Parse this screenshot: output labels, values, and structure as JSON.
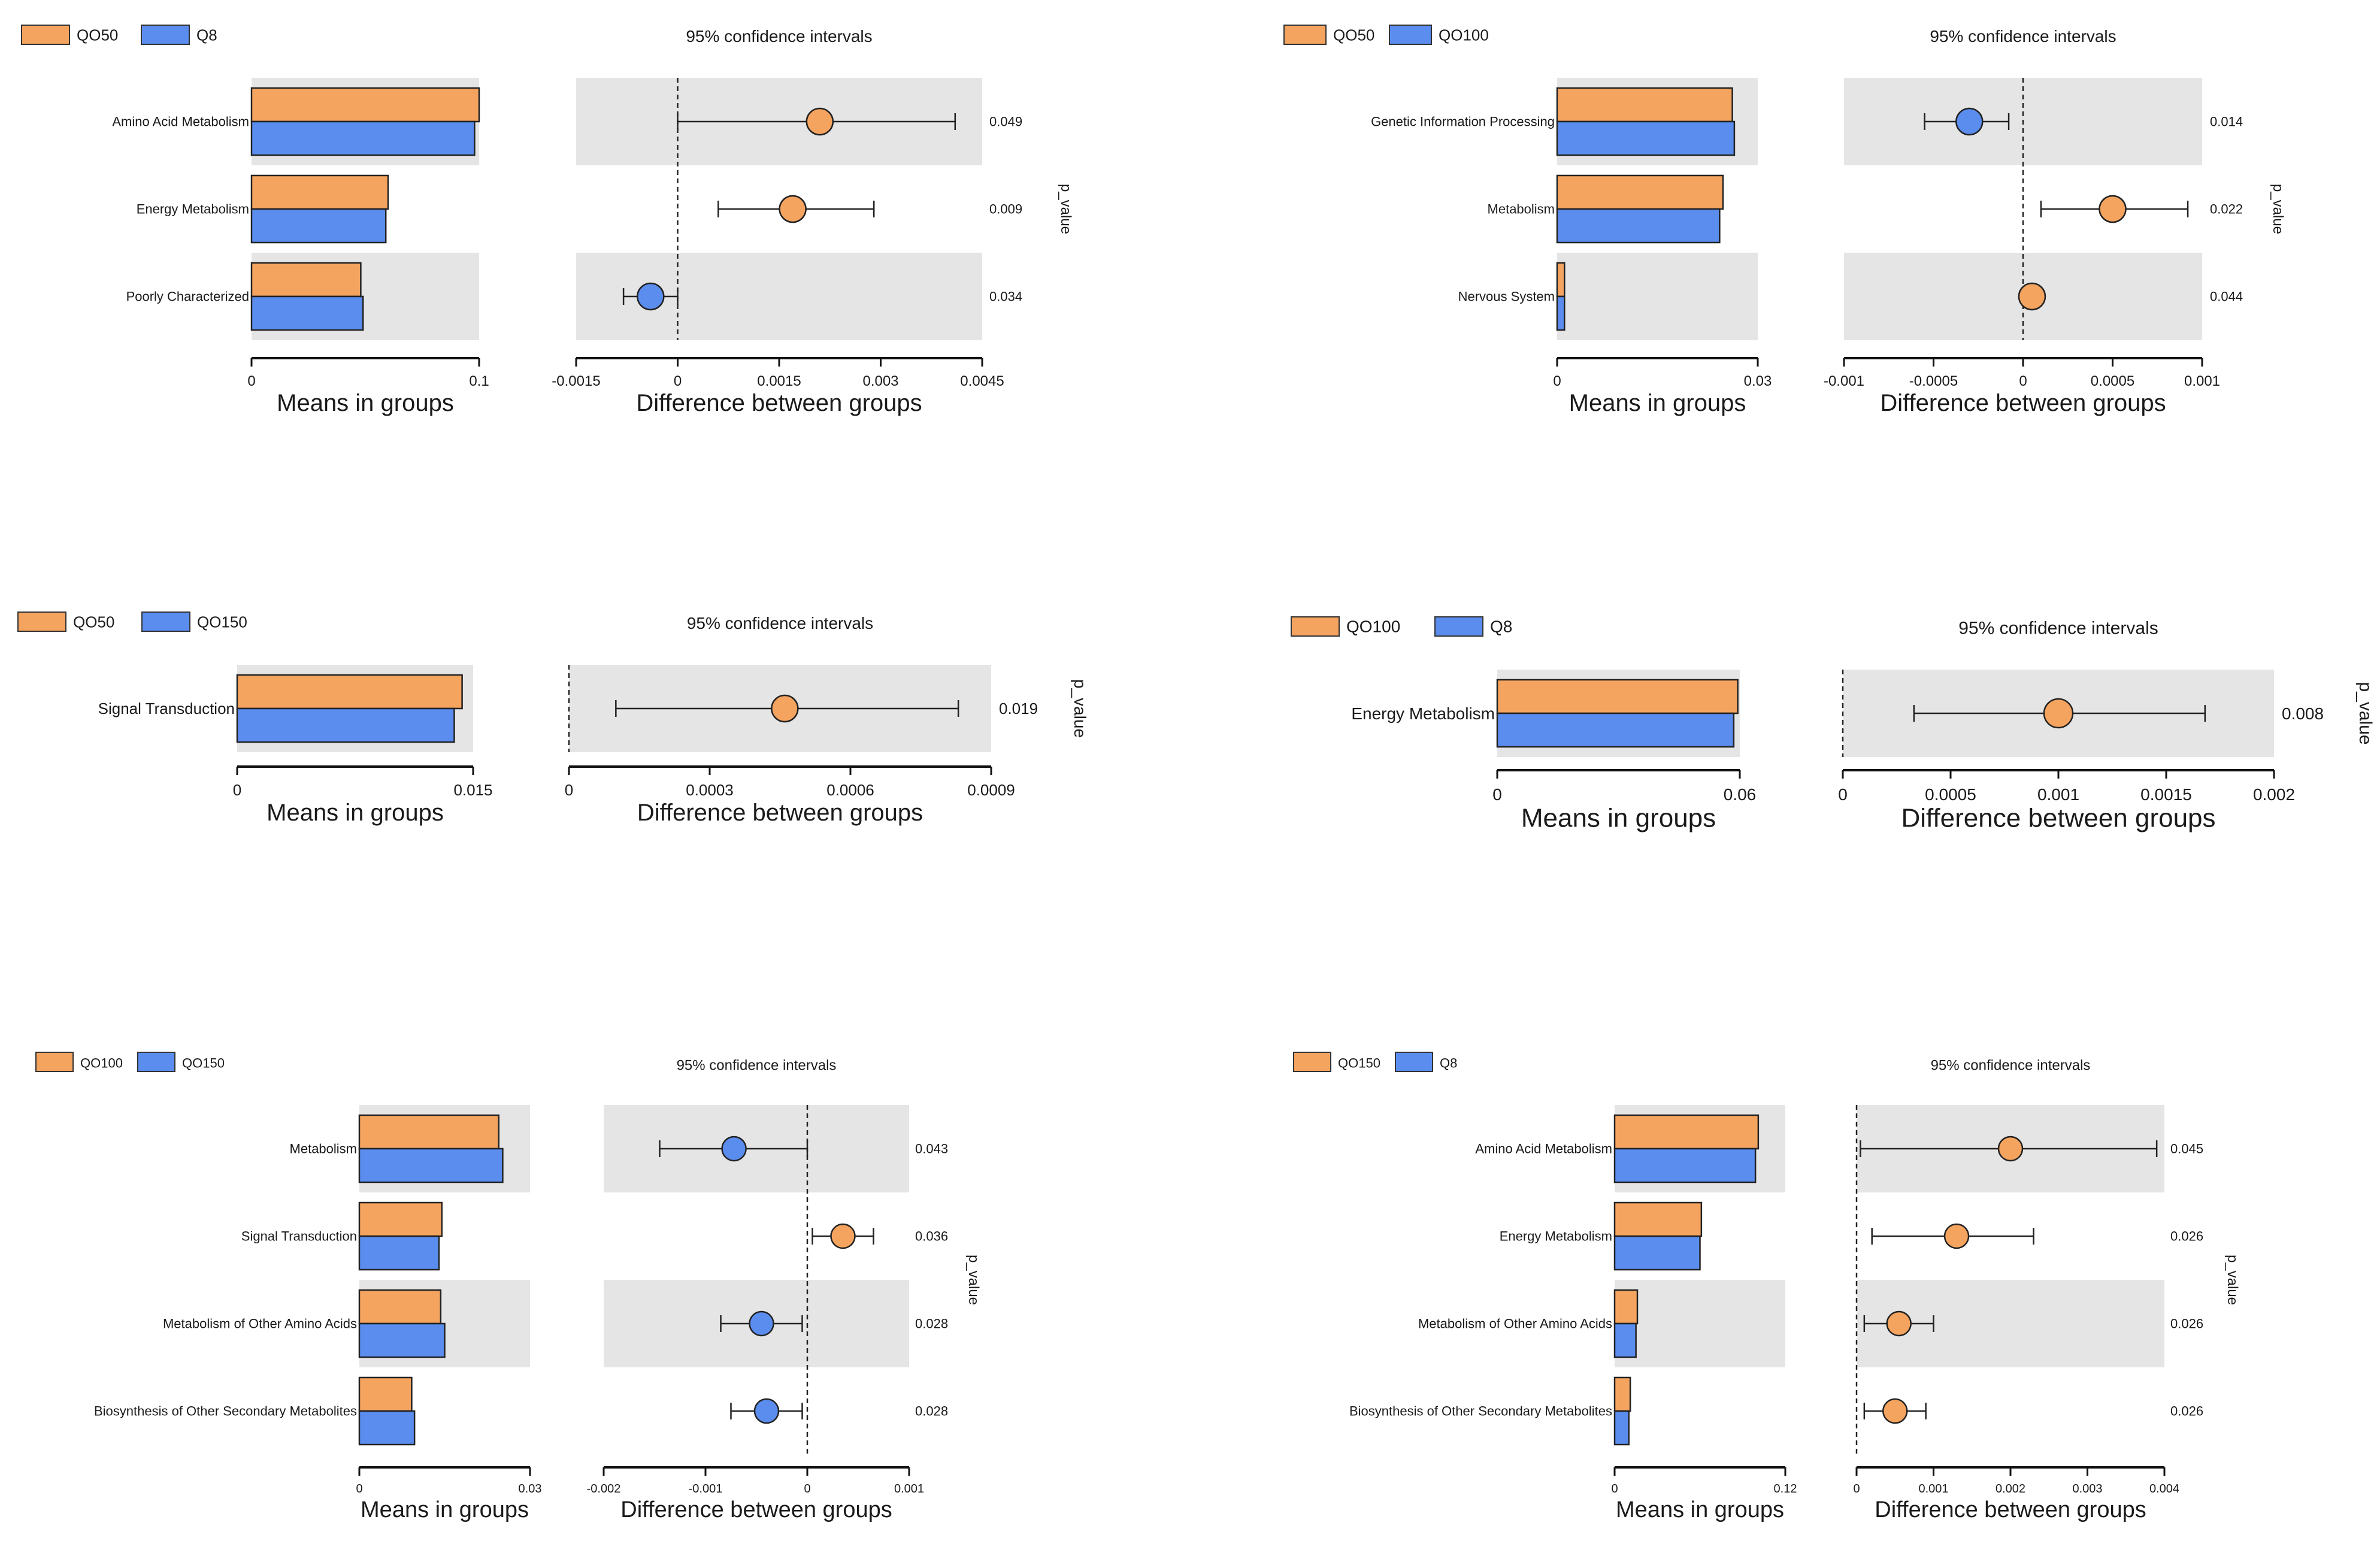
{
  "labels": {
    "ci_title": "95% confidence intervals",
    "means_xlabel": "Means in groups",
    "diff_xlabel": "Difference between groups",
    "pvalue_label": "p_value"
  },
  "colors": {
    "group_a": "#F5A460",
    "group_b": "#5B8DEF",
    "band": "#E5E5E5"
  },
  "chart_data": [
    {
      "type": "bar",
      "group_a": "QO50",
      "group_b": "Q8",
      "categories": [
        "Amino Acid Metabolism",
        "Energy Metabolism",
        "Poorly Characterized"
      ],
      "series": [
        {
          "name": "QO50",
          "values": [
            0.1,
            0.06,
            0.048
          ]
        },
        {
          "name": "Q8",
          "values": [
            0.098,
            0.059,
            0.049
          ]
        }
      ],
      "means_xlim": [
        0,
        0.1
      ],
      "means_ticks": [
        "0",
        "0.1"
      ],
      "diff_xlim": [
        -0.0015,
        0.0045
      ],
      "diff_ticks": [
        "-0.0015",
        "0",
        "0.0015",
        "0.003",
        "0.0045"
      ],
      "diff": [
        0.0021,
        0.0017,
        -0.0004
      ],
      "ci_low": [
        0.0,
        0.0006,
        -0.0008
      ],
      "ci_high": [
        0.0041,
        0.0029,
        0.0
      ],
      "p_values": [
        "0.049",
        "0.009",
        "0.034"
      ]
    },
    {
      "type": "bar",
      "group_a": "QO50",
      "group_b": "QO100",
      "categories": [
        "Genetic Information Processing",
        "Metabolism",
        "Nervous System"
      ],
      "series": [
        {
          "name": "QO50",
          "values": [
            0.0262,
            0.0248,
            0.0011
          ]
        },
        {
          "name": "QO100",
          "values": [
            0.0265,
            0.0243,
            0.0011
          ]
        }
      ],
      "means_xlim": [
        0,
        0.03
      ],
      "means_ticks": [
        "0",
        "0.03"
      ],
      "diff_xlim": [
        -0.001,
        0.001
      ],
      "diff_ticks": [
        "-0.001",
        "-0.0005",
        "0",
        "0.0005",
        "0.001"
      ],
      "diff": [
        -0.0003,
        0.0005,
        5e-05
      ],
      "ci_low": [
        -0.00055,
        0.0001,
        0.0
      ],
      "ci_high": [
        -8e-05,
        0.00092,
        0.0001
      ],
      "p_values": [
        "0.014",
        "0.022",
        "0.044"
      ]
    },
    {
      "type": "bar",
      "group_a": "QO50",
      "group_b": "QO150",
      "categories": [
        "Signal Transduction"
      ],
      "series": [
        {
          "name": "QO50",
          "values": [
            0.0143
          ]
        },
        {
          "name": "QO150",
          "values": [
            0.0138
          ]
        }
      ],
      "means_xlim": [
        0,
        0.015
      ],
      "means_ticks": [
        "0",
        "0.015"
      ],
      "diff_xlim": [
        0,
        0.0009
      ],
      "diff_ticks": [
        "0",
        "0.0003",
        "0.0006",
        "0.0009"
      ],
      "diff": [
        0.00046
      ],
      "ci_low": [
        0.0001
      ],
      "ci_high": [
        0.00083
      ],
      "p_values": [
        "0.019"
      ]
    },
    {
      "type": "bar",
      "group_a": "QO100",
      "group_b": "Q8",
      "categories": [
        "Energy Metabolism"
      ],
      "series": [
        {
          "name": "QO100",
          "values": [
            0.0595
          ]
        },
        {
          "name": "Q8",
          "values": [
            0.0585
          ]
        }
      ],
      "means_xlim": [
        0,
        0.06
      ],
      "means_ticks": [
        "0",
        "0.06"
      ],
      "diff_xlim": [
        0,
        0.002
      ],
      "diff_ticks": [
        "0",
        "0.0005",
        "0.001",
        "0.0015",
        "0.002"
      ],
      "diff": [
        0.001
      ],
      "ci_low": [
        0.00033
      ],
      "ci_high": [
        0.00168
      ],
      "p_values": [
        "0.008"
      ]
    },
    {
      "type": "bar",
      "group_a": "QO100",
      "group_b": "QO150",
      "categories": [
        "Metabolism",
        "Signal Transduction",
        "Metabolism of Other Amino Acids",
        "Biosynthesis of Other Secondary Metabolites"
      ],
      "series": [
        {
          "name": "QO100",
          "values": [
            0.0245,
            0.0145,
            0.0143,
            0.0092
          ]
        },
        {
          "name": "QO150",
          "values": [
            0.0252,
            0.014,
            0.015,
            0.0097
          ]
        }
      ],
      "means_xlim": [
        0,
        0.03
      ],
      "means_ticks": [
        "0",
        "0.03"
      ],
      "diff_xlim": [
        -0.002,
        0.001
      ],
      "diff_ticks": [
        "-0.002",
        "-0.001",
        "0",
        "0.001"
      ],
      "diff": [
        -0.00072,
        0.00035,
        -0.00045,
        -0.0004
      ],
      "ci_low": [
        -0.00145,
        5e-05,
        -0.00085,
        -0.00075
      ],
      "ci_high": [
        0.0,
        0.00065,
        -5e-05,
        -5e-05
      ],
      "p_values": [
        "0.043",
        "0.036",
        "0.028",
        "0.028"
      ]
    },
    {
      "type": "bar",
      "group_a": "QO150",
      "group_b": "Q8",
      "categories": [
        "Amino Acid Metabolism",
        "Energy Metabolism",
        "Metabolism of Other Amino Acids",
        "Biosynthesis of Other Secondary Metabolites"
      ],
      "series": [
        {
          "name": "QO150",
          "values": [
            0.101,
            0.061,
            0.016,
            0.011
          ]
        },
        {
          "name": "Q8",
          "values": [
            0.099,
            0.06,
            0.015,
            0.01
          ]
        }
      ],
      "means_xlim": [
        0,
        0.12
      ],
      "means_ticks": [
        "0",
        "0.12"
      ],
      "diff_xlim": [
        0,
        0.004
      ],
      "diff_ticks": [
        "0",
        "0.001",
        "0.002",
        "0.003",
        "0.004"
      ],
      "diff": [
        0.002,
        0.0013,
        0.00055,
        0.0005
      ],
      "ci_low": [
        5e-05,
        0.0002,
        0.0001,
        0.0001
      ],
      "ci_high": [
        0.0039,
        0.0023,
        0.001,
        0.0009
      ],
      "p_values": [
        "0.045",
        "0.026",
        "0.026",
        "0.026"
      ]
    }
  ]
}
